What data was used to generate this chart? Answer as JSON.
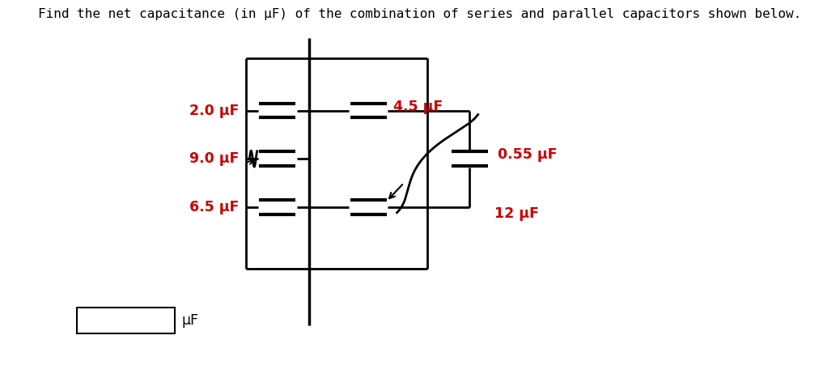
{
  "title": "Find the net capacitance (in μF) of the combination of series and parallel capacitors shown below.",
  "title_fontsize": 11.5,
  "label_color": "#CC0000",
  "label_fontsize": 12.5,
  "line_color": "#000000",
  "bg_color": "#FFFFFF",
  "C1": "2.0 μF",
  "C2": "9.0 μF",
  "C3": "6.5 μF",
  "C4": "4.5 μF",
  "C5": "0.55 μF",
  "C6": "12 μF",
  "uf_label": "μF"
}
